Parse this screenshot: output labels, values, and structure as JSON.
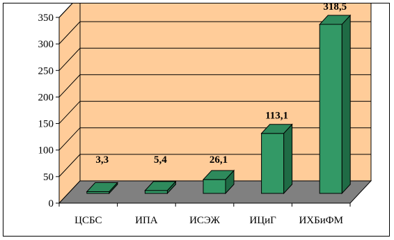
{
  "chart_data": {
    "type": "bar",
    "categories": [
      "ЦСБС",
      "ИПА",
      "ИСЭЖ",
      "ИЦиГ",
      "ИХБиФМ"
    ],
    "values": [
      3.3,
      5.4,
      26.1,
      113.1,
      318.5
    ],
    "value_labels": [
      "3,3",
      "5,4",
      "26,1",
      "113,1",
      "318,5"
    ],
    "y_ticks": [
      0,
      50,
      100,
      150,
      200,
      250,
      300,
      350
    ],
    "ylim": [
      0,
      350
    ],
    "title": "",
    "xlabel": "",
    "ylabel": "",
    "grid": true,
    "legend": "none",
    "colors": {
      "bar_front": "#339966",
      "bar_top": "#2e8a5c",
      "bar_side": "#1f6b45",
      "wall": "#ffcc99",
      "floor": "#808080"
    }
  }
}
